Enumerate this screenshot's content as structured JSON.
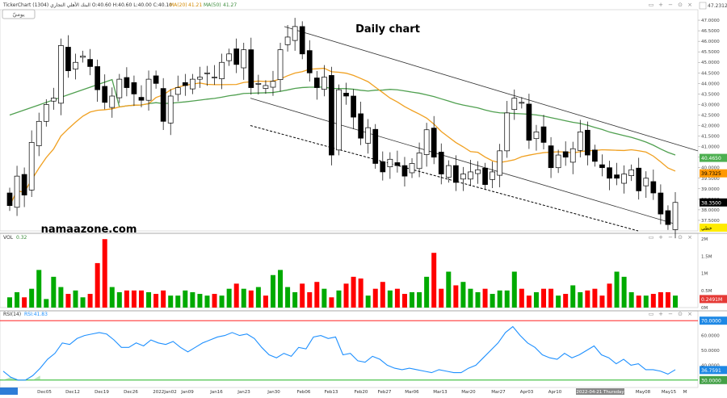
{
  "header": {
    "symbol_line": "TickerChart البنك الأهلي التجاري (1304) O:40.60 H:40.60 L:40.00 C:40.10",
    "ma20_label": "MA(20)",
    "ma20_value": "41.21",
    "ma50_label": "MA(50)",
    "ma50_value": "41.27",
    "badge": "يوميّ"
  },
  "annotation_title": "Daily chart",
  "watermark": "namaazone.com",
  "colors": {
    "up": "#00aa00",
    "down": "#ff0000",
    "ma20": "#f0a020",
    "ma50": "#50a050",
    "rsi": "#1e90ff",
    "rsi_top": "#ff0000",
    "rsi_bottom": "#00aa00",
    "tag_ma50": "#4caf50",
    "tag_ma20": "#ff9800",
    "tag_price": "#000000",
    "tag_volume": "#e53935",
    "tag_rsi": "#1e88e5",
    "tag_rsi30": "#43a047",
    "tag_yellow": "#ffeb00"
  },
  "chart_data": [
    {
      "type": "candlestick",
      "title": "Daily chart",
      "ylim": [
        37.0,
        47.5
      ],
      "y_ticks": [
        "37.5000",
        "38.0000",
        "38.5000",
        "39.0000",
        "39.5000",
        "40.0000",
        "40.5000",
        "41.0000",
        "41.5000",
        "42.0000",
        "42.5000",
        "43.0000",
        "43.5000",
        "44.0000",
        "44.5000",
        "45.0000",
        "45.5000",
        "46.0000",
        "46.5000",
        "47.0000"
      ],
      "top_price_label": "47.2312",
      "x_labels": [
        "Dec05",
        "Dec12",
        "Dec19",
        "Dec26",
        "2022Jan02",
        "Jan09",
        "Jan16",
        "Jan23",
        "Jan30",
        "Feb06",
        "Feb13",
        "Feb20",
        "Feb27",
        "Mar06",
        "Mar13",
        "Mar20",
        "Mar27",
        "Apr03",
        "Apr10",
        "2022-04-21 Thursday",
        "May08",
        "May15",
        "M"
      ],
      "price_tags": {
        "ma50": "40.4650",
        "ma20": "39.7325",
        "last_price": "38.3500",
        "yellow_tag": "خطي"
      },
      "closes": [
        38.2,
        39.6,
        38.7,
        41.2,
        42.2,
        43.0,
        43.3,
        45.8,
        44.6,
        45.0,
        45.3,
        44.8,
        43.7,
        43.1,
        43.4,
        44.2,
        43.8,
        43.5,
        43.2,
        44.2,
        44.0,
        42.2,
        43.4,
        43.8,
        43.9,
        44.2,
        44.3,
        44.5,
        44.3,
        45.0,
        45.4,
        44.9,
        45.6,
        43.8,
        44.0,
        43.9,
        44.1,
        45.6,
        46.2,
        46.7,
        45.4,
        44.5,
        43.8,
        44.3,
        40.6,
        43.7,
        43.4,
        42.4,
        41.4,
        41.9,
        40.2,
        39.8,
        40.4,
        40.1,
        39.6,
        40.2,
        40.7,
        41.8,
        40.5,
        39.7,
        40.1,
        39.3,
        39.7,
        39.8,
        39.9,
        39.2,
        39.8,
        40.8,
        42.6,
        43.3,
        43.1,
        41.3,
        41.7,
        41.2,
        40.0,
        40.6,
        40.5,
        40.9,
        41.7,
        40.6,
        40.3,
        40.0,
        39.5,
        39.5,
        39.7,
        39.9,
        38.9,
        39.5,
        38.8,
        37.8,
        37.3,
        38.35
      ],
      "volume": {
        "label": "VOL",
        "value": "0.32",
        "y_ticks": [
          "2M",
          "1.5M",
          "1M",
          "0.5M",
          "0M"
        ],
        "tag": "0.2491M",
        "ylim_millions": [
          0,
          2.1
        ],
        "values_millions": [
          0.3,
          0.45,
          0.3,
          0.55,
          1.1,
          0.25,
          0.9,
          0.6,
          0.4,
          0.5,
          0.3,
          0.4,
          1.3,
          2.0,
          0.6,
          0.45,
          0.5,
          0.5,
          0.5,
          0.45,
          0.4,
          0.5,
          0.35,
          0.35,
          0.5,
          0.45,
          0.4,
          0.35,
          0.4,
          0.35,
          0.55,
          0.7,
          0.55,
          0.5,
          0.6,
          0.35,
          0.95,
          1.1,
          0.6,
          0.45,
          0.7,
          0.45,
          0.75,
          0.55,
          0.3,
          0.5,
          0.7,
          0.9,
          0.85,
          0.35,
          0.55,
          0.75,
          0.5,
          0.55,
          0.4,
          0.45,
          0.45,
          0.9,
          1.6,
          0.55,
          1.05,
          0.65,
          0.75,
          0.55,
          0.45,
          0.55,
          0.4,
          0.5,
          0.5,
          1.05,
          0.55,
          0.35,
          0.45,
          0.55,
          0.55,
          0.35,
          0.4,
          0.65,
          0.45,
          0.5,
          0.55,
          0.35,
          0.7,
          1.05,
          0.9,
          0.45,
          0.35,
          0.35,
          0.4,
          0.45,
          0.45,
          0.35
        ]
      },
      "rsi": {
        "label": "RSI(14)",
        "value": "RSI:41.83",
        "y_ticks": [
          "70.0000",
          "60.0000",
          "50.0000",
          "40.0000"
        ],
        "tag": "36.7591",
        "level_30": "30.0000",
        "ylim": [
          25,
          75
        ],
        "values": [
          36,
          32,
          30,
          30,
          33,
          38,
          44,
          48,
          55,
          54,
          58,
          60,
          61,
          62,
          61,
          57,
          52,
          52,
          55,
          53,
          57,
          55,
          54,
          56,
          52,
          49,
          52,
          55,
          57,
          59,
          60,
          62,
          60,
          61,
          58,
          52,
          47,
          45,
          48,
          46,
          52,
          51,
          59,
          60,
          58,
          59,
          47,
          48,
          43,
          42,
          46,
          44,
          40,
          38,
          37,
          38,
          37,
          36,
          35,
          37,
          36,
          35,
          35,
          38,
          40,
          45,
          50,
          55,
          62,
          66,
          60,
          55,
          52,
          47,
          45,
          44,
          48,
          45,
          47,
          50,
          53,
          47,
          45,
          41,
          44,
          40,
          41,
          37,
          37,
          36,
          34,
          37
        ]
      }
    }
  ]
}
